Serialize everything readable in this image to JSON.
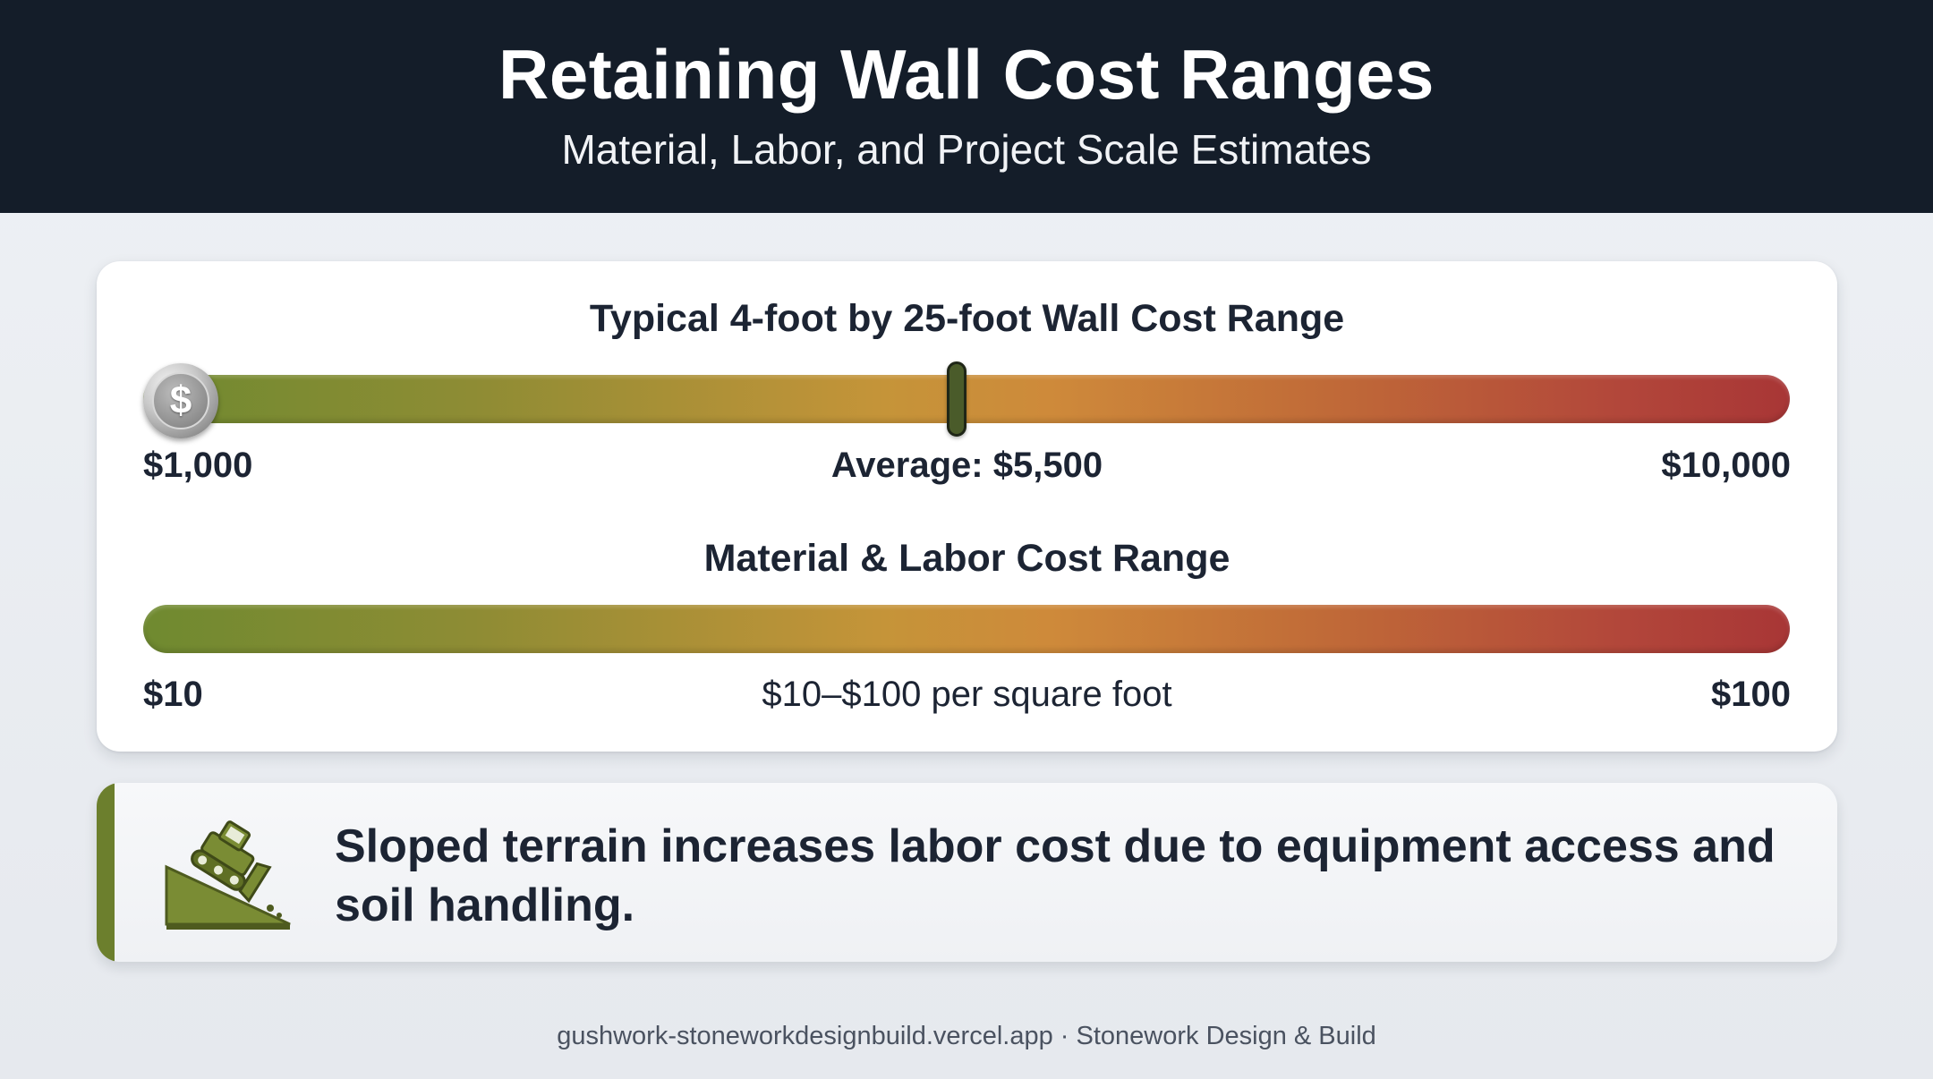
{
  "header": {
    "title": "Retaining Wall Cost Ranges",
    "subtitle": "Material, Labor, and Project Scale Estimates"
  },
  "wall_range": {
    "title": "Typical 4-foot by 25-foot Wall Cost Range",
    "min_label": "$1,000",
    "average_label": "Average: $5,500",
    "max_label": "$10,000",
    "min_value": 1000,
    "average_value": 5500,
    "max_value": 10000,
    "knob_symbol": "$",
    "knob_icon": "dollar-coin-icon"
  },
  "material_range": {
    "title": "Material & Labor Cost Range",
    "min_label": "$10",
    "center_label": "$10–$100 per square foot",
    "max_label": "$100",
    "min_value": 10,
    "max_value": 100
  },
  "gradient_colors": {
    "low": "#6f8a30",
    "mid": "#c59439",
    "high": "#a83636"
  },
  "note": {
    "icon": "bulldozer-slope-icon",
    "accent_color": "#6c7f2d",
    "text": "Sloped terrain increases labor cost due to equipment access and soil handling."
  },
  "footer": {
    "text": "gushwork-stoneworkdesignbuild.vercel.app · Stonework Design & Build"
  }
}
